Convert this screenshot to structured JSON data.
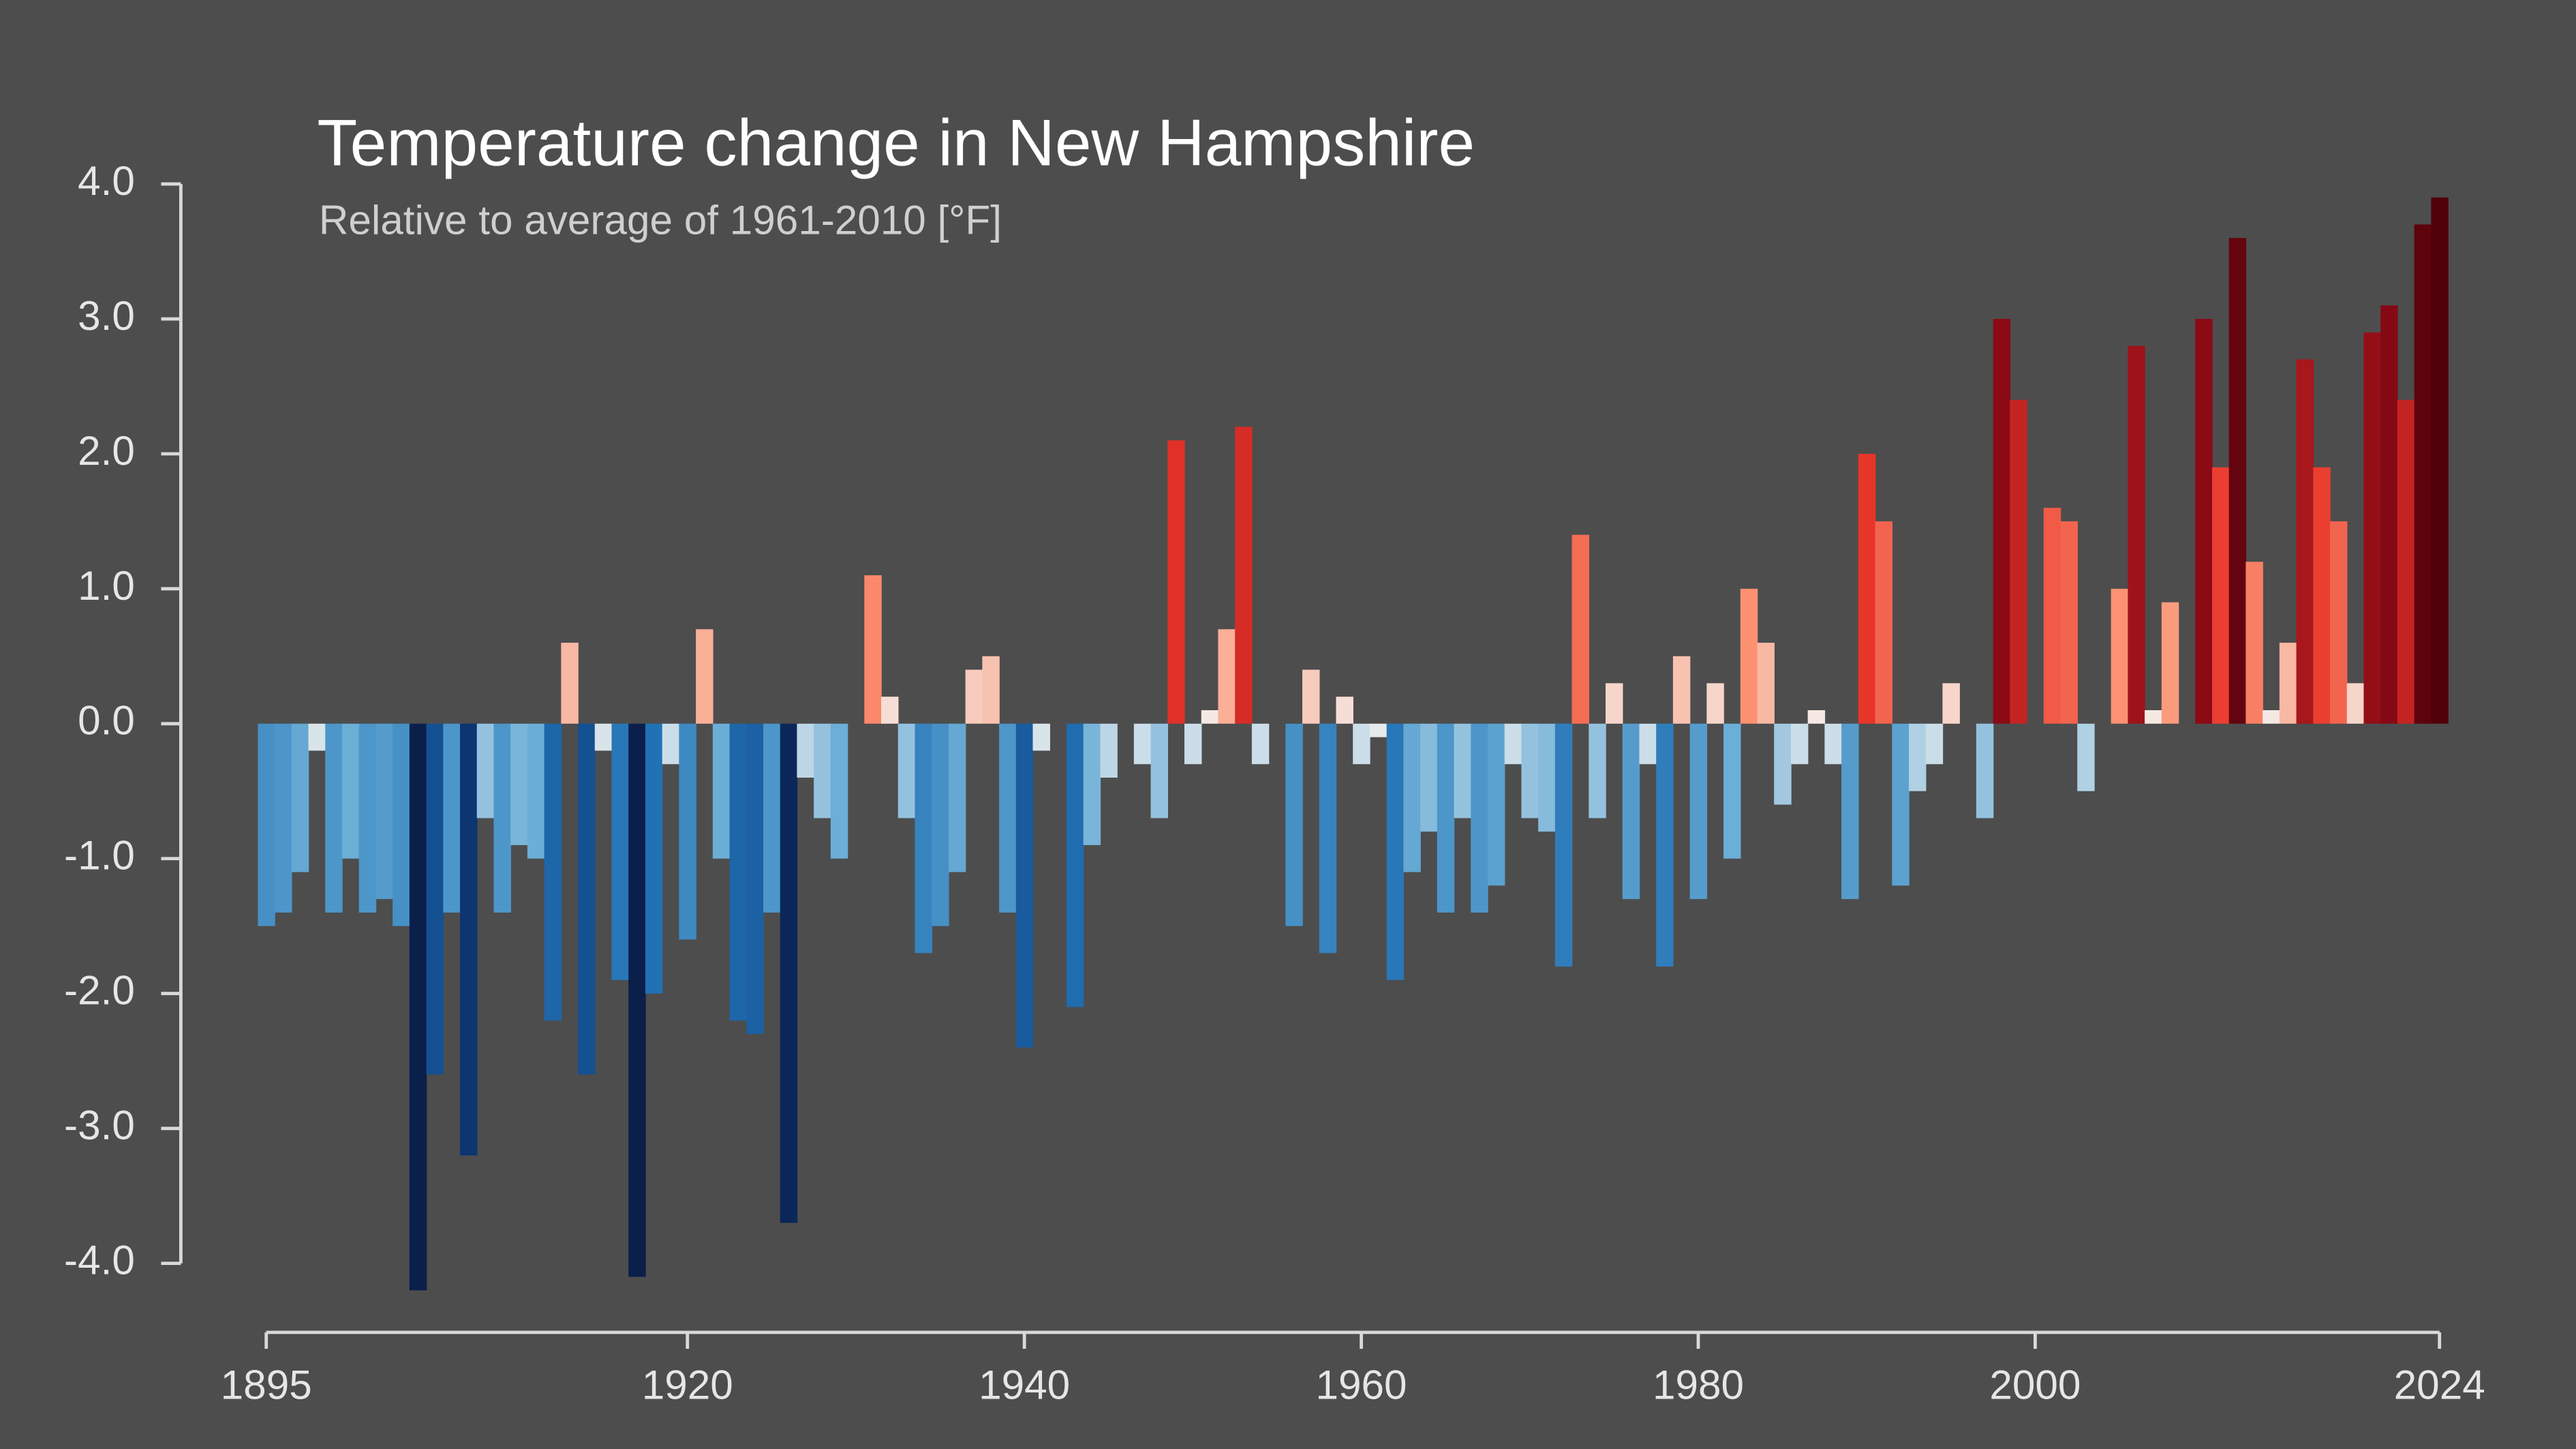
{
  "chart_data": {
    "type": "bar",
    "title": "Temperature change in New Hampshire",
    "subtitle": "Relative to average of 1961-2010  [°F]",
    "x": [
      1895,
      1896,
      1897,
      1898,
      1899,
      1900,
      1901,
      1902,
      1903,
      1904,
      1905,
      1906,
      1907,
      1908,
      1909,
      1910,
      1911,
      1912,
      1913,
      1914,
      1915,
      1916,
      1917,
      1918,
      1919,
      1920,
      1921,
      1922,
      1923,
      1924,
      1925,
      1926,
      1927,
      1928,
      1929,
      1930,
      1931,
      1932,
      1933,
      1934,
      1935,
      1936,
      1937,
      1938,
      1939,
      1940,
      1941,
      1942,
      1943,
      1944,
      1945,
      1946,
      1947,
      1948,
      1949,
      1950,
      1951,
      1952,
      1953,
      1954,
      1955,
      1956,
      1957,
      1958,
      1959,
      1960,
      1961,
      1962,
      1963,
      1964,
      1965,
      1966,
      1967,
      1968,
      1969,
      1970,
      1971,
      1972,
      1973,
      1974,
      1975,
      1976,
      1977,
      1978,
      1979,
      1980,
      1981,
      1982,
      1983,
      1984,
      1985,
      1986,
      1987,
      1988,
      1989,
      1990,
      1991,
      1992,
      1993,
      1994,
      1995,
      1996,
      1997,
      1998,
      1999,
      2000,
      2001,
      2002,
      2003,
      2004,
      2005,
      2006,
      2007,
      2008,
      2009,
      2010,
      2011,
      2012,
      2013,
      2014,
      2015,
      2016,
      2017,
      2018,
      2019,
      2020,
      2021,
      2022,
      2023,
      2024
    ],
    "values": [
      -1.5,
      -1.4,
      -1.1,
      -0.2,
      -1.4,
      -1.0,
      -1.4,
      -1.3,
      -1.5,
      -4.2,
      -2.6,
      -1.4,
      -3.2,
      -0.7,
      -1.4,
      -0.9,
      -1.0,
      -2.2,
      0.6,
      -2.6,
      -0.2,
      -1.9,
      -4.1,
      -2.0,
      -0.3,
      -1.6,
      0.7,
      -1.0,
      -2.2,
      -2.3,
      -1.4,
      -3.7,
      -0.4,
      -0.7,
      -1.0,
      0,
      1.1,
      0.2,
      -0.7,
      -1.7,
      -1.5,
      -1.1,
      0.4,
      0.5,
      -1.4,
      -2.4,
      -0.2,
      0,
      -2.1,
      -0.9,
      -0.4,
      0,
      -0.3,
      -0.7,
      2.1,
      -0.3,
      0.1,
      0.7,
      2.2,
      -0.3,
      0,
      -1.5,
      0.4,
      -1.7,
      0.2,
      -0.3,
      -0.1,
      -1.9,
      -1.1,
      -0.8,
      -1.4,
      -0.7,
      -1.4,
      -1.2,
      -0.3,
      -0.7,
      -0.8,
      -1.8,
      1.4,
      -0.7,
      0.3,
      -1.3,
      -0.3,
      -1.8,
      0.5,
      -1.3,
      0.3,
      -1.0,
      1.0,
      0.6,
      -0.6,
      -0.3,
      0.1,
      -0.3,
      -1.3,
      2.0,
      1.5,
      -1.2,
      -0.5,
      -0.3,
      0.3,
      0,
      -0.7,
      3.0,
      2.4,
      0,
      1.6,
      1.5,
      -0.5,
      0,
      1.0,
      2.8,
      0.1,
      0.9,
      0,
      3.0,
      1.9,
      3.6,
      1.2,
      0.1,
      0.6,
      2.7,
      1.9,
      1.5,
      0.3,
      2.9,
      3.1,
      2.4,
      3.7,
      3.9
    ],
    "colormap": [
      "#0b1f4b",
      "#0c3a7a",
      "#2171b5",
      "#6baed6",
      "#f4f1ef",
      "#fc9272",
      "#e8352a",
      "#8b0a16",
      "#4a0008"
    ],
    "xlim": [
      1895,
      2024
    ],
    "xticks": [
      1895,
      1920,
      1940,
      1960,
      1980,
      2000,
      2024
    ],
    "ylim": [
      -4,
      4
    ],
    "yticks": [
      {
        "value": -4,
        "label": "-4.0"
      },
      {
        "value": -3,
        "label": "-3.0"
      },
      {
        "value": -2,
        "label": "-2.0"
      },
      {
        "value": -1,
        "label": "-1.0"
      },
      {
        "value": 0,
        "label": "0.0"
      },
      {
        "value": 1,
        "label": "1.0"
      },
      {
        "value": 2,
        "label": "2.0"
      },
      {
        "value": 3,
        "label": "3.0"
      },
      {
        "value": 4,
        "label": "4.0"
      }
    ]
  }
}
